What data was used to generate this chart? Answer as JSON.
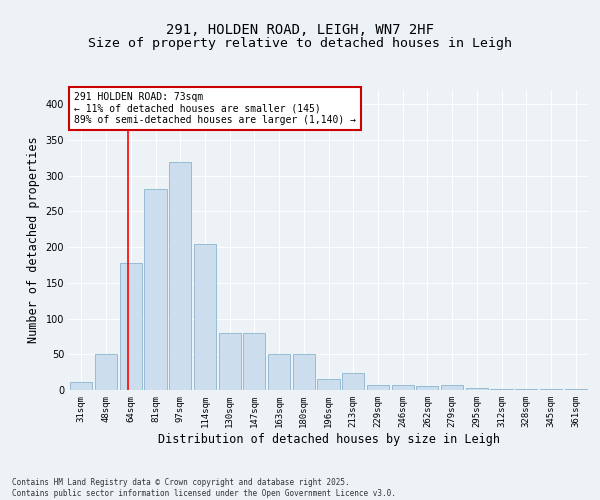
{
  "title1": "291, HOLDEN ROAD, LEIGH, WN7 2HF",
  "title2": "Size of property relative to detached houses in Leigh",
  "xlabel": "Distribution of detached houses by size in Leigh",
  "ylabel": "Number of detached properties",
  "categories": [
    "31sqm",
    "48sqm",
    "64sqm",
    "81sqm",
    "97sqm",
    "114sqm",
    "130sqm",
    "147sqm",
    "163sqm",
    "180sqm",
    "196sqm",
    "213sqm",
    "229sqm",
    "246sqm",
    "262sqm",
    "279sqm",
    "295sqm",
    "312sqm",
    "328sqm",
    "345sqm",
    "361sqm"
  ],
  "values": [
    11,
    51,
    178,
    282,
    319,
    204,
    80,
    80,
    51,
    50,
    15,
    24,
    7,
    7,
    5,
    7,
    3,
    2,
    1,
    1,
    1
  ],
  "bar_color": "#ccdded",
  "bar_edge_color": "#7aaac8",
  "redline_x": 1.88,
  "annotation_text": "291 HOLDEN ROAD: 73sqm\n← 11% of detached houses are smaller (145)\n89% of semi-detached houses are larger (1,140) →",
  "annotation_box_color": "#ffffff",
  "annotation_box_edge_color": "#cc0000",
  "footer_text": "Contains HM Land Registry data © Crown copyright and database right 2025.\nContains public sector information licensed under the Open Government Licence v3.0.",
  "ylim": [
    0,
    420
  ],
  "yticks": [
    0,
    50,
    100,
    150,
    200,
    250,
    300,
    350,
    400
  ],
  "bg_color": "#edf2f7",
  "grid_color": "#ffffff",
  "title_fontsize": 10,
  "subtitle_fontsize": 9.5,
  "tick_fontsize": 6.5,
  "label_fontsize": 8.5,
  "annotation_fontsize": 7,
  "footer_fontsize": 5.5
}
